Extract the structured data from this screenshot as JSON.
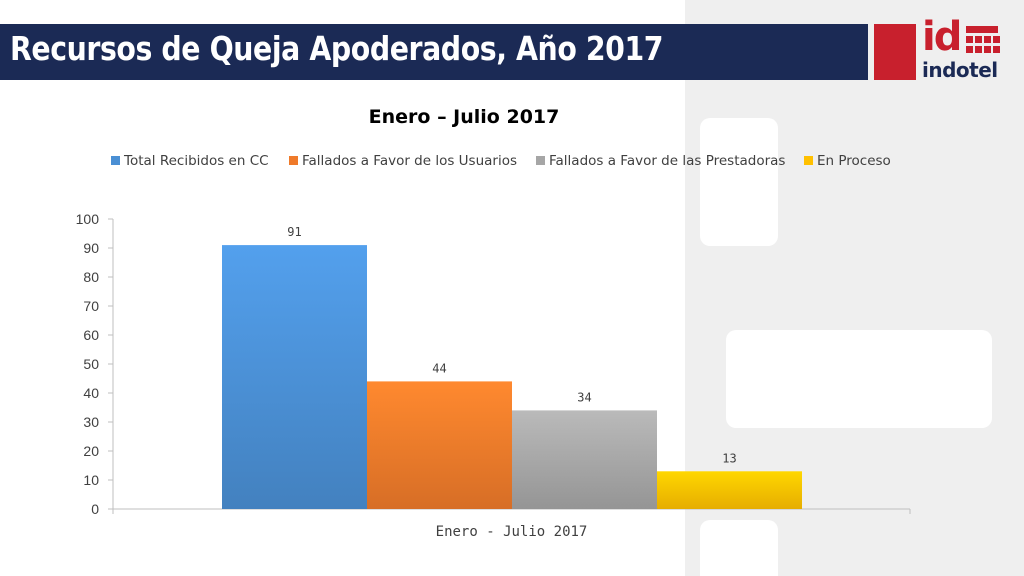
{
  "header": {
    "title": "Recursos de Queja Apoderados, Año 2017",
    "logo_text": "indotel",
    "logo_mark": "id"
  },
  "colors": {
    "title_bar": "#1b2a55",
    "brand_red": "#c8202d",
    "series": [
      "#4a8fd4",
      "#ef7a2a",
      "#a6a6a6",
      "#ffc000"
    ]
  },
  "chart_data": {
    "type": "bar",
    "title": "Enero – Julio 2017",
    "categories": [
      "Enero - Julio 2017"
    ],
    "series": [
      {
        "name": "Total Recibidos en CC",
        "values": [
          91
        ]
      },
      {
        "name": "Fallados a Favor de los Usuarios",
        "values": [
          44
        ]
      },
      {
        "name": "Fallados a Favor de las Prestadoras",
        "values": [
          34
        ]
      },
      {
        "name": "En Proceso",
        "values": [
          13
        ]
      }
    ],
    "ylim": [
      0,
      100
    ],
    "yticks": [
      0,
      10,
      20,
      30,
      40,
      50,
      60,
      70,
      80,
      90,
      100
    ],
    "legend_position": "top",
    "data_labels": true,
    "grid": false
  }
}
